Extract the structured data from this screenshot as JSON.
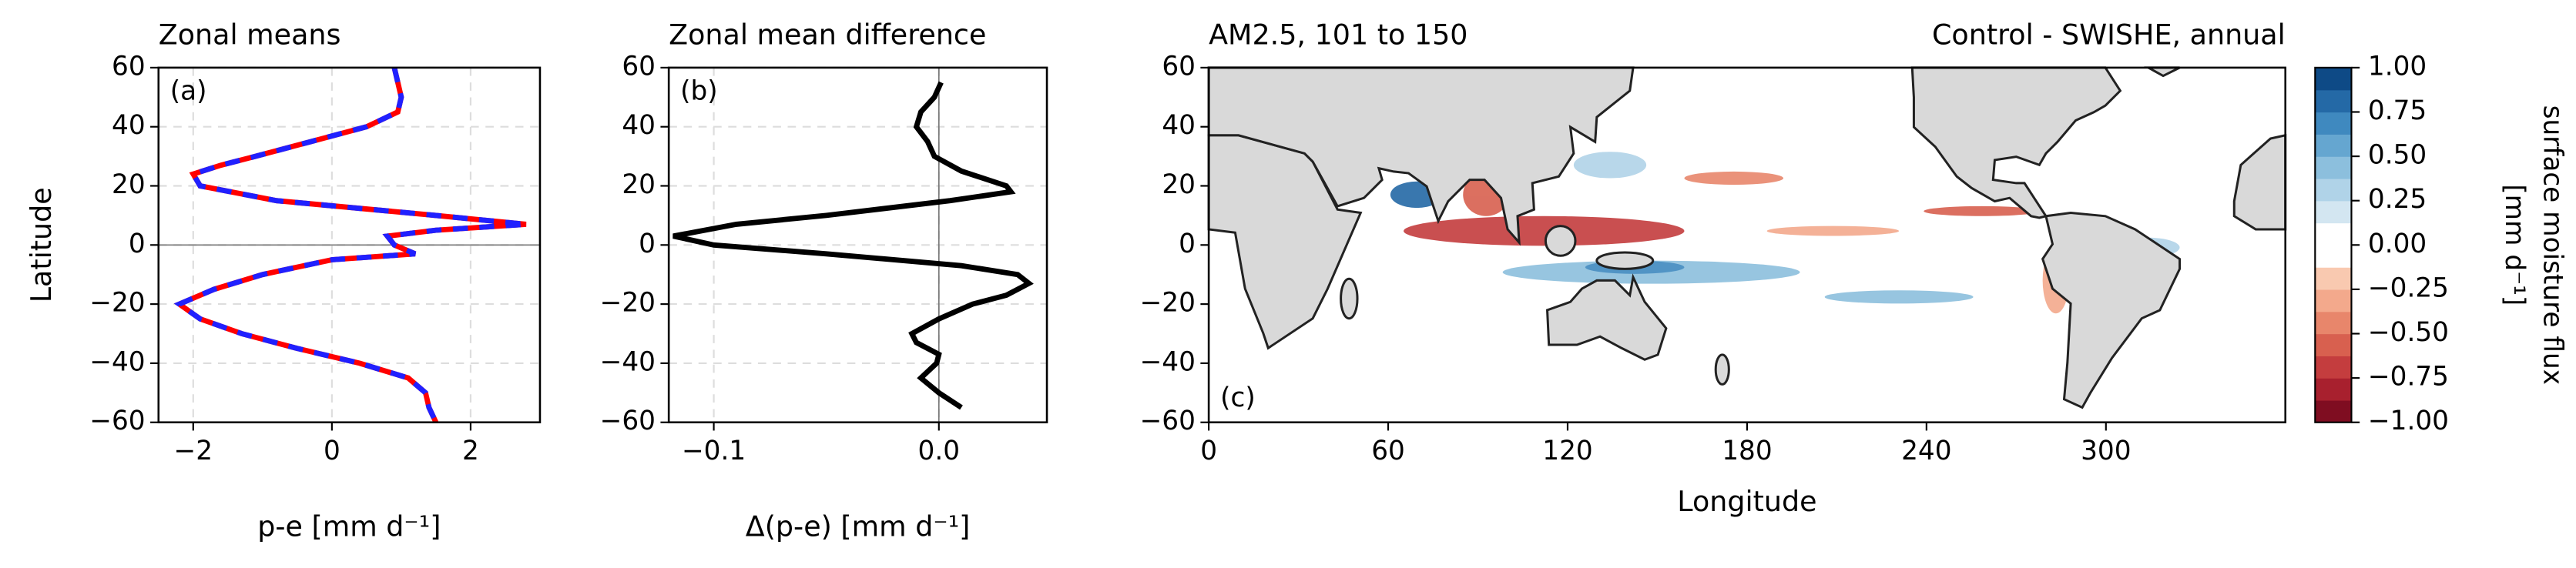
{
  "chart_data": [
    {
      "type": "line",
      "title": "Zonal means",
      "panel_label": "(a)",
      "xlabel": "p-e [mm d⁻¹]",
      "ylabel": "Latitude",
      "xlim": [
        -2.5,
        3.0
      ],
      "xticks": [
        {
          "value": -2,
          "label": "−2"
        },
        0,
        2
      ],
      "ylim": [
        -60,
        60
      ],
      "yticks": [
        {
          "value": -60,
          "label": "−60"
        },
        {
          "value": -40,
          "label": "−40"
        },
        {
          "value": -20,
          "label": "−20"
        },
        0,
        20,
        40,
        60
      ],
      "grid": true,
      "refline": "y",
      "y": [
        60,
        55,
        50,
        45,
        40,
        35,
        30,
        27,
        24,
        20,
        15,
        10,
        7,
        5,
        3,
        0,
        -3,
        -5,
        -10,
        -15,
        -20,
        -25,
        -30,
        -35,
        -40,
        -45,
        -50,
        -55,
        -60
      ],
      "series": [
        {
          "color": "#ff0000",
          "linestyle": "solid",
          "values": [
            0.9,
            0.95,
            1.0,
            0.95,
            0.5,
            -0.3,
            -1.1,
            -1.6,
            -2.0,
            -1.9,
            -0.8,
            1.5,
            2.8,
            1.5,
            0.8,
            0.9,
            1.2,
            0.0,
            -1.0,
            -1.7,
            -2.2,
            -1.9,
            -1.3,
            -0.5,
            0.4,
            1.1,
            1.35,
            1.4,
            1.5
          ]
        },
        {
          "color": "#2020ff",
          "linestyle": "dashed",
          "values": [
            0.9,
            0.95,
            1.0,
            0.95,
            0.5,
            -0.3,
            -1.1,
            -1.6,
            -2.0,
            -1.9,
            -0.8,
            1.5,
            2.8,
            1.5,
            0.8,
            0.9,
            1.2,
            0.0,
            -1.0,
            -1.7,
            -2.2,
            -1.9,
            -1.3,
            -0.5,
            0.4,
            1.1,
            1.35,
            1.4,
            1.5
          ]
        }
      ]
    },
    {
      "type": "line",
      "title": "Zonal mean difference",
      "panel_label": "(b)",
      "xlabel": "Δ(p-e) [mm d⁻¹]",
      "xlim": [
        -0.12,
        0.048
      ],
      "xticks": [
        {
          "value": -0.1,
          "label": "−0.1"
        },
        {
          "value": 0,
          "label": "0.0"
        }
      ],
      "ylim": [
        -60,
        60
      ],
      "yticks": [
        {
          "value": -60,
          "label": "−60"
        },
        {
          "value": -40,
          "label": "−40"
        },
        {
          "value": -20,
          "label": "−20"
        },
        0,
        20,
        40,
        60
      ],
      "grid": true,
      "refline": "x",
      "y": [
        55,
        50,
        45,
        40,
        35,
        30,
        25,
        20,
        18,
        15,
        10,
        7,
        3,
        0,
        -3,
        -7,
        -10,
        -13,
        -17,
        -20,
        -25,
        -30,
        -33,
        -37,
        -40,
        -45,
        -50,
        -55
      ],
      "series": [
        {
          "color": "#000000",
          "linestyle": "solid",
          "values": [
            0.001,
            -0.002,
            -0.008,
            -0.01,
            -0.005,
            -0.002,
            0.01,
            0.03,
            0.032,
            0.005,
            -0.05,
            -0.09,
            -0.118,
            -0.1,
            -0.05,
            0.01,
            0.035,
            0.04,
            0.03,
            0.015,
            0.0,
            -0.012,
            -0.01,
            0.0,
            -0.001,
            -0.008,
            0.0,
            0.01
          ]
        }
      ]
    },
    {
      "type": "map",
      "title": "AM2.5, 101 to 150",
      "title_right": "Control - SWISHE, annual",
      "panel_label": "(c)",
      "xlabel": "Longitude",
      "xlim": [
        0,
        360
      ],
      "xticks": [
        0,
        60,
        120,
        180,
        240,
        300
      ],
      "ylim": [
        -60,
        60
      ],
      "yticks": [
        {
          "value": -60,
          "label": "−60"
        },
        {
          "value": -40,
          "label": "−40"
        },
        {
          "value": -20,
          "label": "−20"
        },
        0,
        20,
        40,
        60
      ],
      "colorbar": {
        "label": [
          "surface moisture flux",
          "[mm d⁻¹]"
        ],
        "lim": [
          -1,
          1
        ],
        "ticks": [
          {
            "value": -1,
            "label": "−1.00"
          },
          {
            "value": -0.75,
            "label": "−0.75"
          },
          {
            "value": -0.5,
            "label": "−0.50"
          },
          {
            "value": -0.25,
            "label": "−0.25"
          },
          {
            "value": 0,
            "label": "0.00"
          },
          {
            "value": 0.25,
            "label": "0.25"
          },
          {
            "value": 0.5,
            "label": "0.50"
          },
          {
            "value": 0.75,
            "label": "0.75"
          },
          {
            "value": 1,
            "label": "1.00"
          }
        ],
        "colors": [
          "#7f0d21",
          "#a8202e",
          "#c43d3e",
          "#d8604f",
          "#e8866b",
          "#f3a98c",
          "#f9c9b0",
          "#ffffff",
          "#ffffff",
          "#d3e6f1",
          "#b0d3e8",
          "#8cbfdd",
          "#65a6d0",
          "#3f89bf",
          "#2469a6",
          "#0e4a86"
        ]
      }
    }
  ]
}
